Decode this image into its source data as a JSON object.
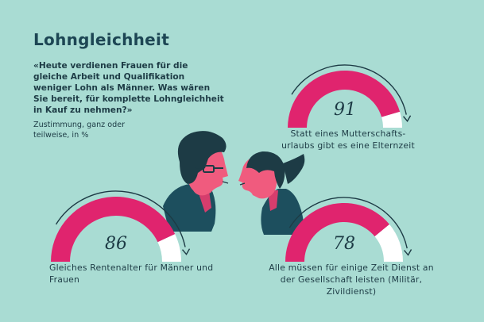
{
  "title": "Lohngleichheit",
  "question": "«Heute verdienen Frauen für die gleiche Arbeit und Qualifikation weniger Lohn als Männer. Was wären Sie bereit, für komplette Lohngleichheit in Kauf zu nehmen?»",
  "note": "Zustimmung, ganz oder teilweise, in %",
  "colors": {
    "background": "#a9dcd3",
    "accent": "#e0246e",
    "rest": "#ffffff",
    "text": "#1d3b45"
  },
  "chart_data": [
    {
      "type": "gauge",
      "value": 91,
      "max": 100,
      "label": "Statt eines Mutterschafts-urlaubs gibt es eine Elternzeit"
    },
    {
      "type": "gauge",
      "value": 86,
      "max": 100,
      "label": "Gleiches Rentenalter für Männer und Frauen"
    },
    {
      "type": "gauge",
      "value": 78,
      "max": 100,
      "label": "Alle müssen für einige Zeit Dienst an der Gesellschaft leisten (Militär, Zivildienst)"
    }
  ]
}
